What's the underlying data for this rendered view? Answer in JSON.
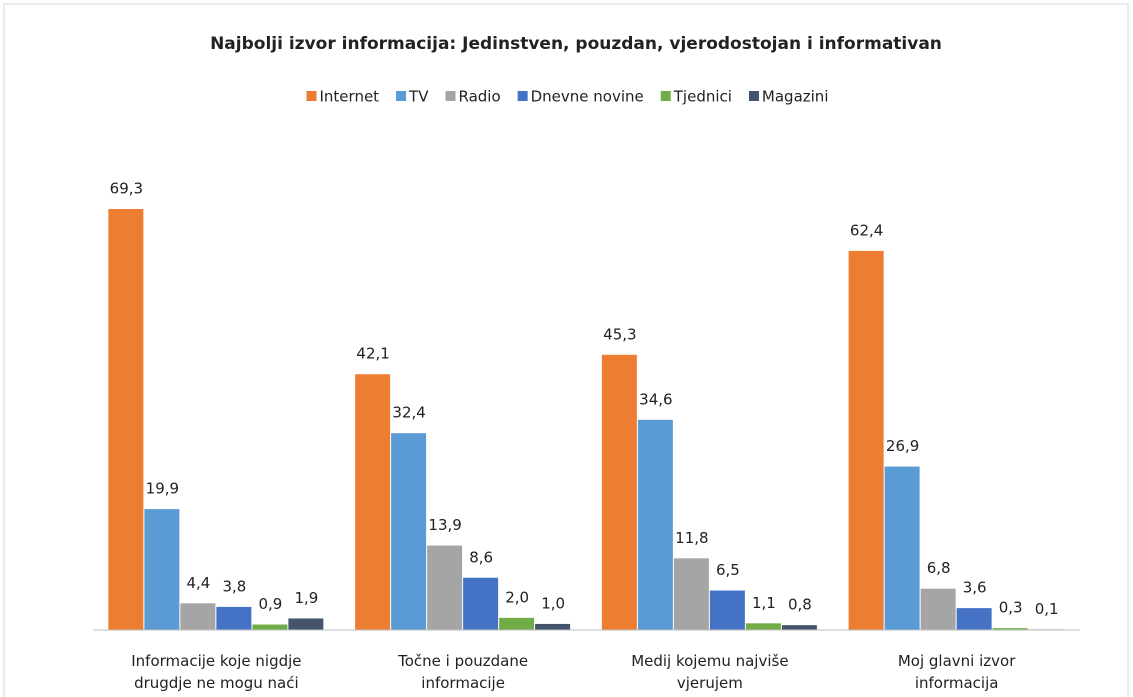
{
  "chart_data": {
    "type": "bar",
    "title": "Najbolji izvor informacija: Jedinstven, pouzdan, vjerodostojan i informativan",
    "categories": [
      "Informacije koje nigdje drugdje ne mogu naći",
      "Točne i pouzdane informacije",
      "Medij kojemu najviše vjerujem",
      "Moj glavni izvor informacija"
    ],
    "series": [
      {
        "name": "Internet",
        "color": "#ed7d31",
        "values": [
          69.3,
          42.1,
          45.3,
          62.4
        ],
        "value_labels": [
          "69,3",
          "42,1",
          "45,3",
          "62,4"
        ]
      },
      {
        "name": "TV",
        "color": "#5b9bd5",
        "values": [
          19.9,
          32.4,
          34.6,
          26.9
        ],
        "value_labels": [
          "19,9",
          "32,4",
          "34,6",
          "26,9"
        ]
      },
      {
        "name": "Radio",
        "color": "#a5a5a5",
        "values": [
          4.4,
          13.9,
          11.8,
          6.8
        ],
        "value_labels": [
          "4,4",
          "13,9",
          "11,8",
          "6,8"
        ]
      },
      {
        "name": "Dnevne novine",
        "color": "#4472c4",
        "values": [
          3.8,
          8.6,
          6.5,
          3.6
        ],
        "value_labels": [
          "3,8",
          "8,6",
          "6,5",
          "3,6"
        ]
      },
      {
        "name": "Tjednici",
        "color": "#70ad47",
        "values": [
          0.9,
          2.0,
          1.1,
          0.3
        ],
        "value_labels": [
          "0,9",
          "2,0",
          "1,1",
          "0,3"
        ]
      },
      {
        "name": "Magazini",
        "color": "#44546a",
        "values": [
          1.9,
          1.0,
          0.8,
          0.1
        ],
        "value_labels": [
          "1,9",
          "1,0",
          "0,8",
          "0,1"
        ]
      }
    ],
    "ylim": [
      0,
      80
    ],
    "legend": "top"
  }
}
